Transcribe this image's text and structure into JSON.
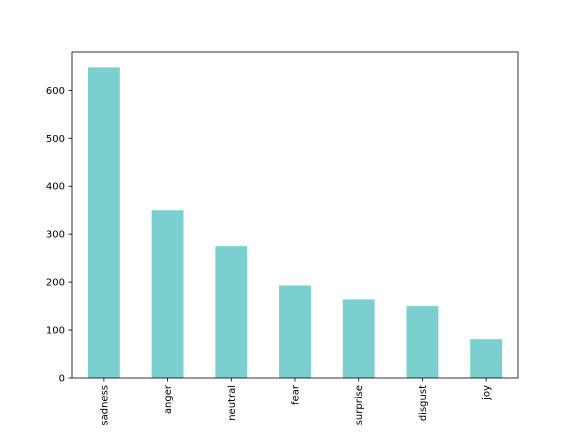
{
  "chart_data": {
    "type": "bar",
    "title": "",
    "xlabel": "",
    "ylabel": "",
    "categories": [
      "sadness",
      "anger",
      "neutral",
      "fear",
      "surprise",
      "disgust",
      "joy"
    ],
    "values": [
      648,
      350,
      275,
      193,
      164,
      150,
      81
    ],
    "ylim": [
      0,
      680
    ],
    "yticks": [
      0,
      100,
      200,
      300,
      400,
      500,
      600
    ],
    "ytick_labels": [
      "0",
      "100",
      "200",
      "300",
      "400",
      "500",
      "600"
    ],
    "bar_color": "#7ccfcf",
    "grid": false,
    "legend": false,
    "x_tick_rotation": "vertical"
  }
}
